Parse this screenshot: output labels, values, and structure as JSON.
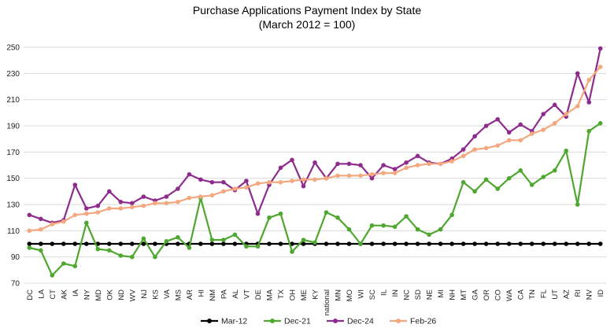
{
  "chart_data": {
    "type": "line",
    "title": "Purchase Applications Payment Index by State",
    "subtitle": "(March 2012 = 100)",
    "xlabel": "",
    "ylabel": "",
    "ylim": [
      70,
      250
    ],
    "yticks": [
      70,
      90,
      110,
      130,
      150,
      170,
      190,
      210,
      230,
      250
    ],
    "grid": true,
    "legend_position": "bottom",
    "categories": [
      "DC",
      "LA",
      "CT",
      "AK",
      "IA",
      "NY",
      "MD",
      "OK",
      "ND",
      "WV",
      "NJ",
      "KS",
      "VA",
      "MS",
      "AR",
      "HI",
      "NM",
      "PA",
      "AL",
      "VT",
      "DE",
      "MA",
      "TX",
      "OH",
      "ME",
      "KY",
      "national",
      "MN",
      "MO",
      "WI",
      "SC",
      "IL",
      "IN",
      "NC",
      "SD",
      "NE",
      "MI",
      "NH",
      "MT",
      "GA",
      "OR",
      "CO",
      "WA",
      "CA",
      "TN",
      "FL",
      "UT",
      "AZ",
      "RI",
      "NV",
      "ID"
    ],
    "series": [
      {
        "name": "Mar-12",
        "color": "#000000",
        "values": [
          100,
          100,
          100,
          100,
          100,
          100,
          100,
          100,
          100,
          100,
          100,
          100,
          100,
          100,
          100,
          100,
          100,
          100,
          100,
          100,
          100,
          100,
          100,
          100,
          100,
          100,
          100,
          100,
          100,
          100,
          100,
          100,
          100,
          100,
          100,
          100,
          100,
          100,
          100,
          100,
          100,
          100,
          100,
          100,
          100,
          100,
          100,
          100,
          100,
          100,
          100
        ]
      },
      {
        "name": "Dec-21",
        "color": "#4ea72e",
        "values": [
          97,
          95,
          76,
          85,
          83,
          116,
          96,
          95,
          91,
          90,
          104,
          90,
          102,
          105,
          97,
          135,
          103,
          103,
          107,
          98,
          98,
          120,
          123,
          94,
          103,
          101,
          124,
          120,
          111,
          100,
          114,
          114,
          113,
          121,
          111,
          107,
          111,
          122,
          147,
          140,
          149,
          142,
          150,
          156,
          145,
          151,
          156,
          171,
          130,
          186,
          192
        ]
      },
      {
        "name": "Dec-24",
        "color": "#8e2c8e",
        "values": [
          122,
          119,
          116,
          118,
          145,
          127,
          129,
          140,
          132,
          131,
          136,
          133,
          136,
          142,
          153,
          149,
          147,
          147,
          141,
          148,
          123,
          145,
          158,
          164,
          144,
          162,
          150,
          161,
          161,
          160,
          150,
          160,
          157,
          162,
          167,
          162,
          161,
          165,
          172,
          182,
          190,
          195,
          185,
          191,
          186,
          199,
          206,
          197,
          230,
          208,
          249
        ]
      },
      {
        "name": "Feb-26",
        "color": "#f3a880",
        "values": [
          110,
          111,
          115,
          117,
          122,
          123,
          124,
          127,
          127,
          128,
          129,
          131,
          131,
          132,
          135,
          136,
          137,
          140,
          142,
          143,
          146,
          147,
          147,
          148,
          149,
          149,
          150,
          152,
          152,
          152,
          153,
          154,
          154,
          158,
          160,
          161,
          161,
          163,
          167,
          172,
          173,
          175,
          179,
          179,
          184,
          187,
          192,
          199,
          205,
          225,
          235
        ]
      }
    ]
  }
}
